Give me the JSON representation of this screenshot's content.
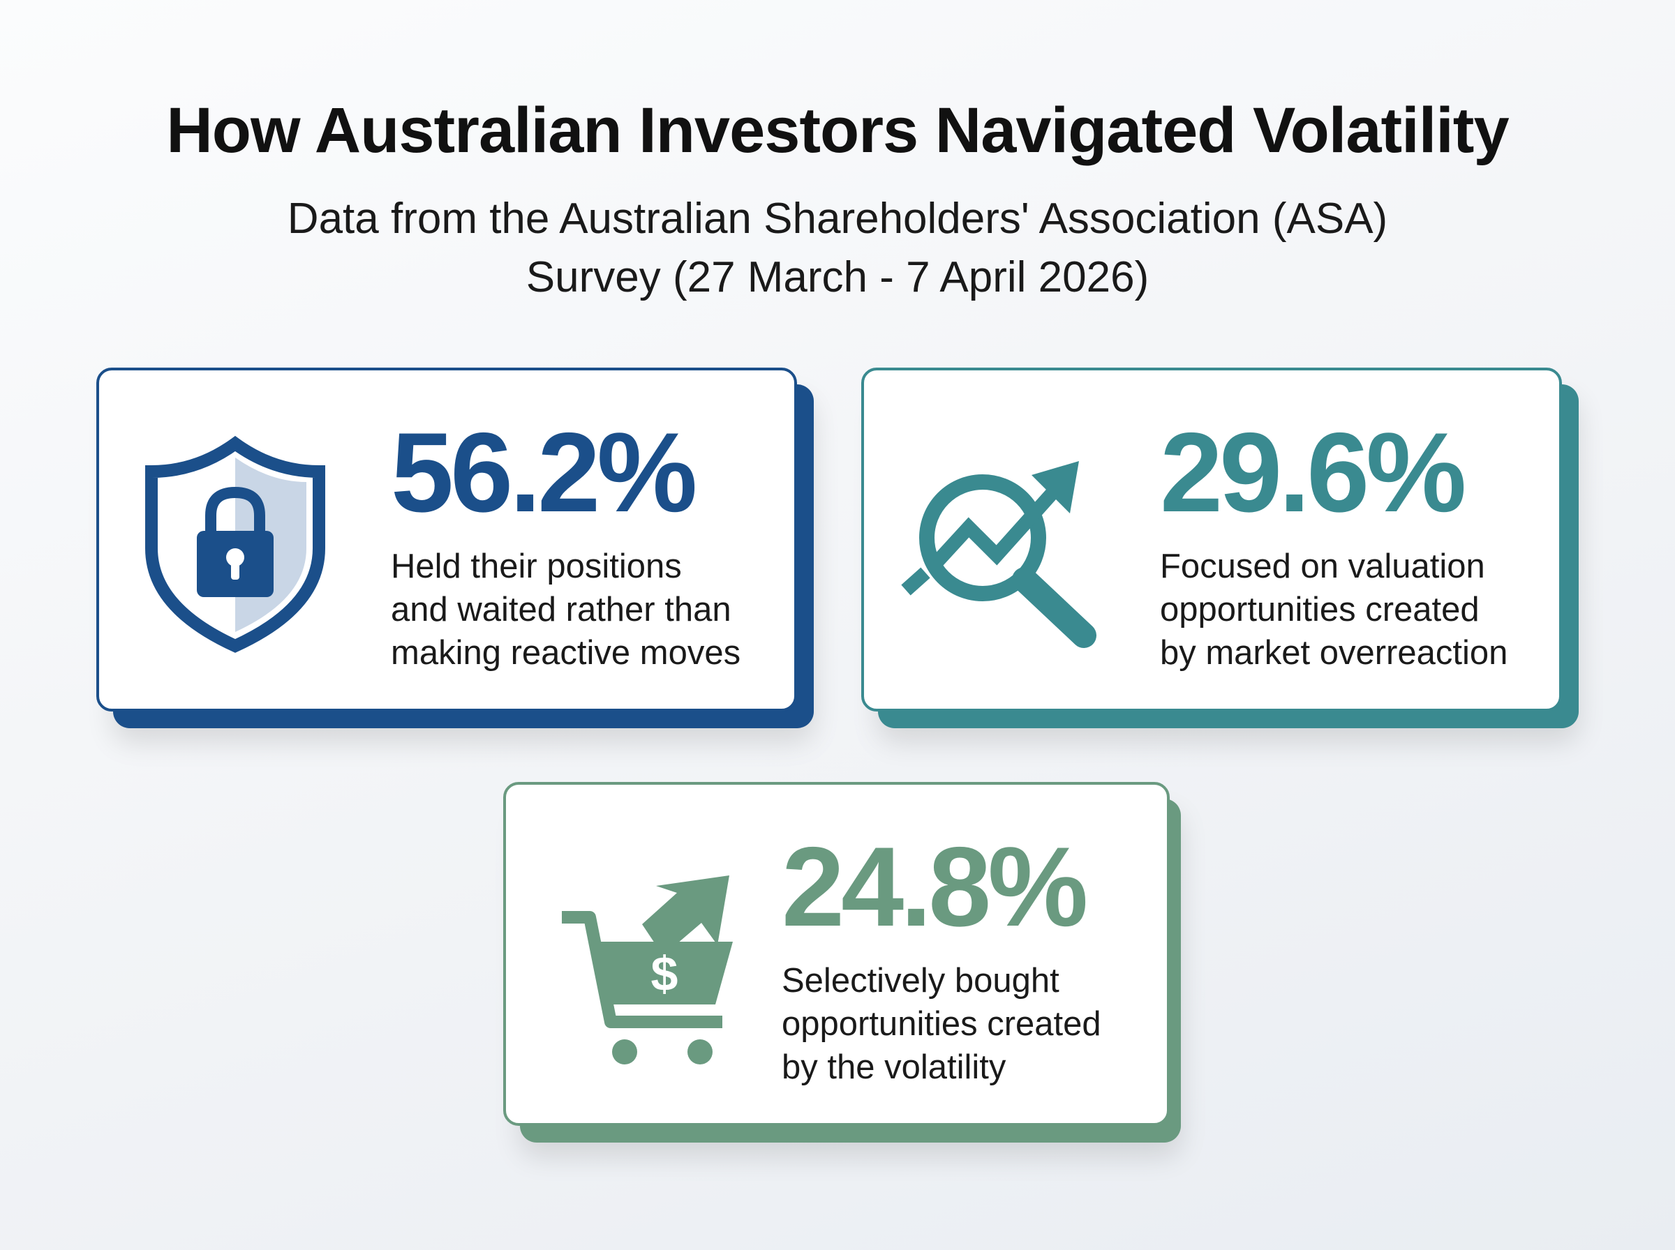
{
  "header": {
    "title": "How Australian Investors Navigated Volatility",
    "subtitle_lines": [
      "Data from the Australian Shareholders' Association (ASA)",
      "Survey (27 March - 7 April 2026)"
    ]
  },
  "cards": [
    {
      "value": "56.2%",
      "description_lines": [
        "Held their positions",
        "and waited rather than",
        "making reactive moves"
      ]
    },
    {
      "value": "29.6%",
      "description_lines": [
        "Focused on valuation",
        "opportunities created",
        "by market overreaction"
      ]
    },
    {
      "value": "24.8%",
      "description_lines": [
        "Selectively bought",
        "opportunities created",
        "by the volatility"
      ]
    }
  ]
}
